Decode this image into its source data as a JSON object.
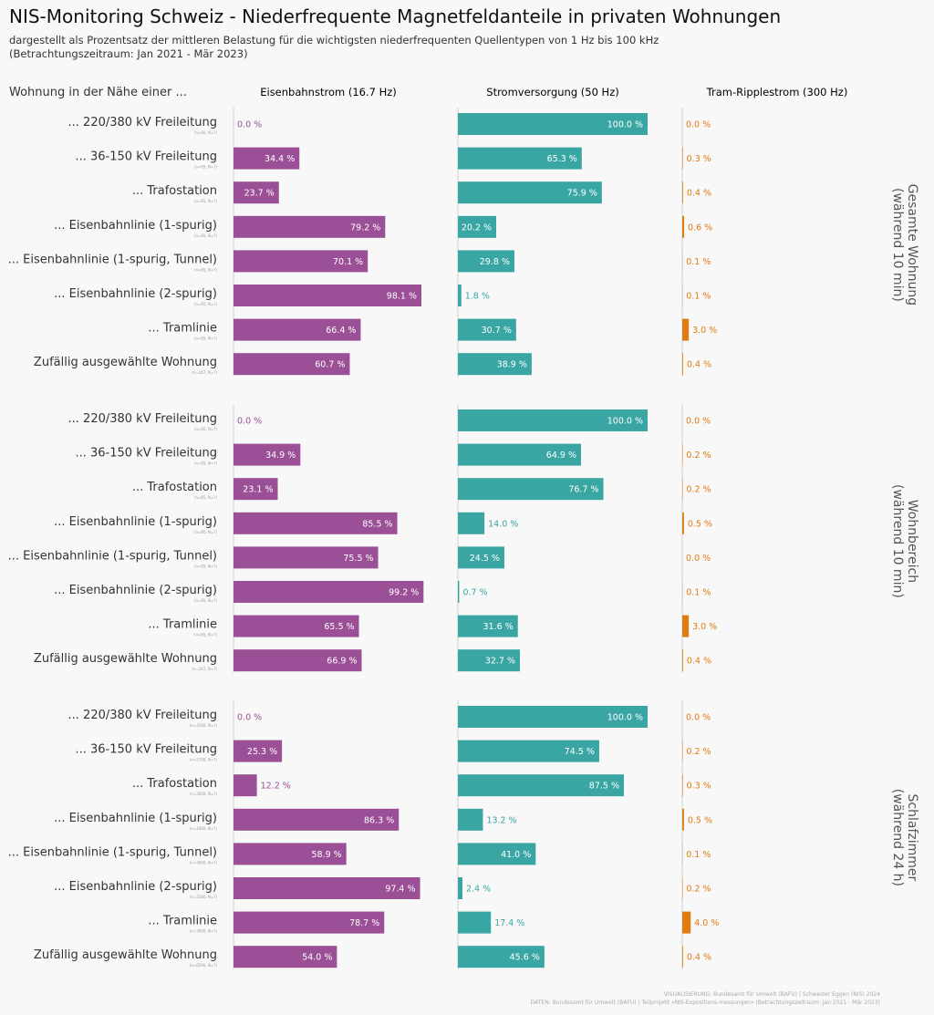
{
  "header": {
    "title": "NIS-Monitoring Schweiz - Niederfrequente Magnetfeldanteile in privaten Wohnungen",
    "subtitle_line1": "dargestellt als Prozentsatz der mittleren Belastung für die wichtigsten niederfrequenten Quellentypen von 1 Hz bis 100 kHz",
    "subtitle_line2": "(Betrachtungszeitraum: Jan 2021 - Mär 2023)",
    "row_header": "Wohnung in der Nähe einer ..."
  },
  "colors": {
    "eisenbahn": "#9b4f96",
    "strom": "#3aa6a4",
    "tram": "#e07b12",
    "axis": "#cfcfcf"
  },
  "chart_data": {
    "type": "bar",
    "unit": "%",
    "columns": [
      "Eisenbahnstrom (16.7 Hz)",
      "Stromversorgung (50 Hz)",
      "Tram-Ripplestrom (300 Hz)"
    ],
    "categories": [
      "... 220/380 kV Freileitung",
      "... 36-150 kV Freileitung",
      "... Trafostation",
      "... Eisenbahnlinie (1-spurig)",
      "... Eisenbahnlinie (1-spurig, Tunnel)",
      "... Eisenbahnlinie (2-spurig)",
      "... Tramlinie",
      "Zufällig ausgewählte Wohnung"
    ],
    "panels": [
      {
        "label_line1": "Gesamte Wohnung",
        "label_line2": "(während 10 min)",
        "n_labels": [
          "(n=60, N=?)",
          "(n=65, N=?)",
          "(n=65, N=?)",
          "(n=60, N=?)",
          "(n=65, N=?)",
          "(n=60, N=?)",
          "(n=65, N=?)",
          "(n=167, N=?)"
        ],
        "eisenbahn": [
          0.0,
          34.4,
          23.7,
          79.2,
          70.1,
          98.1,
          66.4,
          60.7
        ],
        "strom": [
          100.0,
          65.3,
          75.9,
          20.2,
          29.8,
          1.8,
          30.7,
          38.9
        ],
        "tram": [
          0.0,
          0.3,
          0.4,
          0.6,
          0.1,
          0.1,
          3.0,
          0.4
        ]
      },
      {
        "label_line1": "Wohnbereich",
        "label_line2": "(während 10 min)",
        "n_labels": [
          "(n=60, N=?)",
          "(n=65, N=?)",
          "(n=65, N=?)",
          "(n=60, N=?)",
          "(n=65, N=?)",
          "(n=60, N=?)",
          "(n=65, N=?)",
          "(n=167, N=?)"
        ],
        "eisenbahn": [
          0.0,
          34.9,
          23.1,
          85.5,
          75.5,
          99.2,
          65.5,
          66.9
        ],
        "strom": [
          100.0,
          64.9,
          76.7,
          14.0,
          24.5,
          0.7,
          31.6,
          32.7
        ],
        "tram": [
          0.0,
          0.2,
          0.2,
          0.5,
          0.0,
          0.1,
          3.0,
          0.4
        ]
      },
      {
        "label_line1": "Schlafzimmer",
        "label_line2": "(während 24 h)",
        "n_labels": [
          "(n=2500, N=?)",
          "(n=2700, N=?)",
          "(n=2650, N=?)",
          "(n=2400, N=?)",
          "(n=2600, N=?)",
          "(n=2500, N=?)",
          "(n=2600, N=?)",
          "(n=6500, N=?)"
        ],
        "eisenbahn": [
          0.0,
          25.3,
          12.2,
          86.3,
          58.9,
          97.4,
          78.7,
          54.0
        ],
        "strom": [
          100.0,
          74.5,
          87.5,
          13.2,
          41.0,
          2.4,
          17.4,
          45.6
        ],
        "tram": [
          0.0,
          0.2,
          0.3,
          0.5,
          0.1,
          0.2,
          4.0,
          0.4
        ]
      }
    ]
  },
  "footer": {
    "line1": "VISUALISIERUNG: Bundesamt für Umwelt (BAFU) | Schweizer Eggen (NIS) 2024",
    "line2": "DATEN: Bundesamt für Umwelt (BAFU) | Teilprojekt «NIS-Expositions-messungen» (Betrachtungszeitraum: Jan 2021 - Mär 2023)"
  }
}
